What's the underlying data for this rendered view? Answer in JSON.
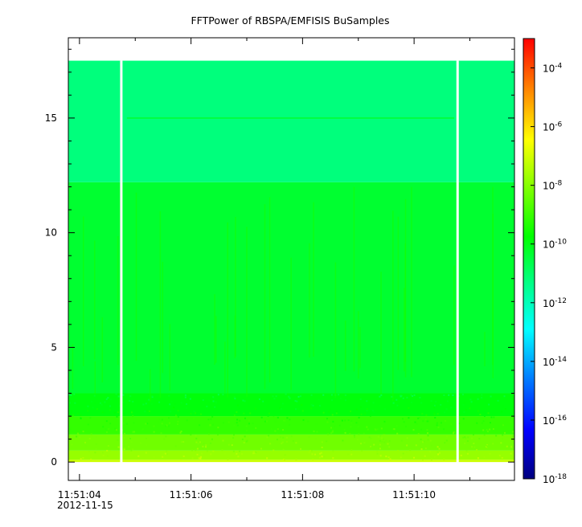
{
  "chart_data": {
    "type": "heatmap",
    "title": "FFTPower of RBSPA/EMFISIS  BuSamples",
    "date_label": "2012-11-15",
    "x_axis": {
      "type": "time",
      "range": [
        "11:51:03.80",
        "11:51:11.80"
      ],
      "major_ticks": [
        {
          "t": 4,
          "label": "11:51:04"
        },
        {
          "t": 6,
          "label": "11:51:06"
        },
        {
          "t": 8,
          "label": "11:51:08"
        },
        {
          "t": 10,
          "label": "11:51:10"
        }
      ],
      "minor_ticks": [
        5,
        7,
        9,
        11
      ]
    },
    "y_axis": {
      "range": [
        -0.8,
        18.5
      ],
      "ticks": [
        {
          "v": 0,
          "label": "0"
        },
        {
          "v": 5,
          "label": "5"
        },
        {
          "v": 10,
          "label": "10"
        },
        {
          "v": 15,
          "label": "15"
        }
      ],
      "minor_ticks": [
        1,
        2,
        3,
        4,
        6,
        7,
        8,
        9,
        11,
        12,
        13,
        14,
        16,
        17,
        18
      ]
    },
    "colorbar": {
      "scale": "log",
      "range": [
        1e-18,
        0.001
      ],
      "colormap": [
        "#00007f",
        "#0000ff",
        "#007fff",
        "#00ffff",
        "#00ff7f",
        "#00ff00",
        "#7fff00",
        "#ffff00",
        "#ff7f00",
        "#ff0000"
      ],
      "ticks": [
        {
          "exp": -18,
          "base": "10",
          "sup": "-18"
        },
        {
          "exp": -16,
          "base": "10",
          "sup": "-16"
        },
        {
          "exp": -14,
          "base": "10",
          "sup": "-14"
        },
        {
          "exp": -12,
          "base": "10",
          "sup": "-12"
        },
        {
          "exp": -10,
          "base": "10",
          "sup": "-10"
        },
        {
          "exp": -8,
          "base": "10",
          "sup": "-8"
        },
        {
          "exp": -6,
          "base": "10",
          "sup": "-6"
        },
        {
          "exp": -4,
          "base": "10",
          "sup": "-4"
        }
      ]
    },
    "spectrogram": {
      "y_max": 17.5,
      "data_gaps_seconds": [
        4.75,
        10.78
      ],
      "bands": [
        {
          "y_min": 0.0,
          "y_max": 0.1,
          "log_power": -7.0
        },
        {
          "y_min": 0.1,
          "y_max": 0.5,
          "log_power": -7.7
        },
        {
          "y_min": 0.5,
          "y_max": 1.2,
          "log_power": -8.2
        },
        {
          "y_min": 1.2,
          "y_max": 2.0,
          "log_power": -9.0
        },
        {
          "y_min": 2.0,
          "y_max": 3.0,
          "log_power": -9.8
        },
        {
          "y_min": 3.0,
          "y_max": 12.2,
          "log_power": -10.3
        },
        {
          "y_min": 12.2,
          "y_max": 17.5,
          "log_power": -11.3
        }
      ],
      "line_feature": {
        "y": 15.0,
        "log_power": -10.5
      }
    }
  }
}
